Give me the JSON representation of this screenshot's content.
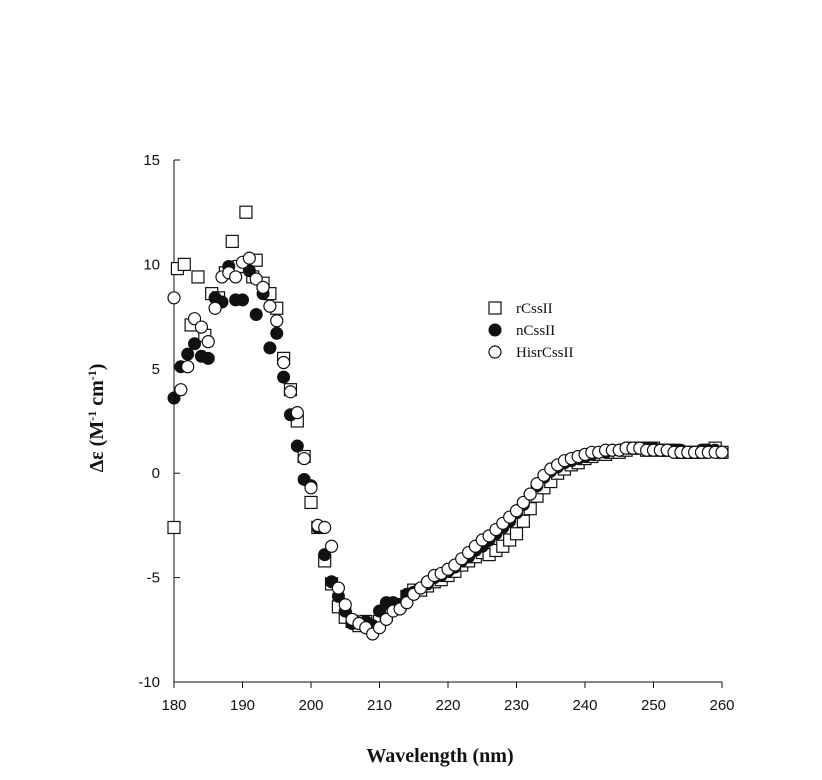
{
  "chart_data": {
    "type": "scatter",
    "xlabel": "Wavelength (nm)",
    "ylabel_parts": {
      "main": "Δε (M",
      "sup1": "-1",
      "mid": " cm",
      "sup2": "-1",
      "end": ")"
    },
    "xlim": [
      180,
      260
    ],
    "ylim": [
      -10,
      15
    ],
    "x_ticks": [
      180,
      190,
      200,
      210,
      220,
      230,
      240,
      250,
      260
    ],
    "y_ticks": [
      -10,
      -5,
      0,
      5,
      10,
      15
    ],
    "grid": false,
    "legend_position": "right-middle",
    "series": [
      {
        "name": "rCssII",
        "marker": "open-square",
        "points": [
          [
            180,
            -2.6
          ],
          [
            180.5,
            9.8
          ],
          [
            181.5,
            10.0
          ],
          [
            182.5,
            7.1
          ],
          [
            183.5,
            9.4
          ],
          [
            184.5,
            6.6
          ],
          [
            185.5,
            8.6
          ],
          [
            186.5,
            8.4
          ],
          [
            187.5,
            9.6
          ],
          [
            188.5,
            11.1
          ],
          [
            189.5,
            9.9
          ],
          [
            190.5,
            12.5
          ],
          [
            191.5,
            9.4
          ],
          [
            192,
            10.2
          ],
          [
            193,
            9.1
          ],
          [
            194,
            8.6
          ],
          [
            195,
            7.9
          ],
          [
            196,
            5.5
          ],
          [
            197,
            4.0
          ],
          [
            198,
            2.5
          ],
          [
            199,
            0.8
          ],
          [
            200,
            -1.4
          ],
          [
            201,
            -2.6
          ],
          [
            202,
            -4.2
          ],
          [
            203,
            -5.3
          ],
          [
            204,
            -6.4
          ],
          [
            205,
            -6.9
          ],
          [
            206,
            -7.1
          ],
          [
            207,
            -7.3
          ],
          [
            208,
            -7.1
          ],
          [
            209,
            -7.3
          ],
          [
            210,
            -7.1
          ],
          [
            211,
            -6.8
          ],
          [
            212,
            -6.5
          ],
          [
            213,
            -6.3
          ],
          [
            214,
            -5.9
          ],
          [
            215,
            -5.6
          ],
          [
            216,
            -5.6
          ],
          [
            217,
            -5.4
          ],
          [
            218,
            -5.2
          ],
          [
            219,
            -5.1
          ],
          [
            220,
            -4.9
          ],
          [
            221,
            -4.7
          ],
          [
            222,
            -4.4
          ],
          [
            223,
            -4.2
          ],
          [
            224,
            -4.0
          ],
          [
            225,
            -3.8
          ],
          [
            226,
            -3.9
          ],
          [
            227,
            -3.7
          ],
          [
            228,
            -3.5
          ],
          [
            229,
            -3.2
          ],
          [
            230,
            -2.9
          ],
          [
            231,
            -2.3
          ],
          [
            232,
            -1.7
          ],
          [
            233,
            -1.1
          ],
          [
            234,
            -0.7
          ],
          [
            235,
            -0.4
          ],
          [
            236,
            0.0
          ],
          [
            237,
            0.2
          ],
          [
            238,
            0.4
          ],
          [
            239,
            0.5
          ],
          [
            240,
            0.7
          ],
          [
            241,
            0.8
          ],
          [
            242,
            0.9
          ],
          [
            243,
            0.9
          ],
          [
            244,
            1.0
          ],
          [
            245,
            1.0
          ],
          [
            246,
            1.1
          ],
          [
            247,
            1.2
          ],
          [
            248,
            1.2
          ],
          [
            249,
            1.1
          ],
          [
            250,
            1.2
          ],
          [
            251,
            1.1
          ],
          [
            252,
            1.1
          ],
          [
            253,
            1.1
          ],
          [
            254,
            1.0
          ],
          [
            255,
            1.0
          ],
          [
            256,
            1.0
          ],
          [
            257,
            1.0
          ],
          [
            258,
            1.1
          ],
          [
            259,
            1.2
          ],
          [
            260,
            1.0
          ]
        ]
      },
      {
        "name": "nCssII",
        "marker": "filled-circle",
        "points": [
          [
            180,
            3.6
          ],
          [
            181,
            5.1
          ],
          [
            182,
            5.7
          ],
          [
            183,
            6.2
          ],
          [
            184,
            5.6
          ],
          [
            185,
            5.5
          ],
          [
            186,
            8.4
          ],
          [
            187,
            8.2
          ],
          [
            188,
            9.9
          ],
          [
            189,
            8.3
          ],
          [
            190,
            8.3
          ],
          [
            191,
            9.7
          ],
          [
            192,
            7.6
          ],
          [
            193,
            8.6
          ],
          [
            194,
            6.0
          ],
          [
            195,
            6.7
          ],
          [
            196,
            4.6
          ],
          [
            197,
            2.8
          ],
          [
            198,
            1.3
          ],
          [
            199,
            -0.3
          ],
          [
            200,
            -0.6
          ],
          [
            201,
            -2.6
          ],
          [
            202,
            -3.9
          ],
          [
            203,
            -5.2
          ],
          [
            204,
            -5.9
          ],
          [
            205,
            -6.6
          ],
          [
            206,
            -7.2
          ],
          [
            207,
            -7.2
          ],
          [
            208,
            -7.1
          ],
          [
            209,
            -7.3
          ],
          [
            210,
            -6.6
          ],
          [
            211,
            -6.2
          ],
          [
            212,
            -6.2
          ],
          [
            213,
            -6.3
          ],
          [
            214,
            -5.8
          ],
          [
            215,
            -5.7
          ],
          [
            216,
            -5.5
          ],
          [
            217,
            -5.3
          ],
          [
            218,
            -5.0
          ],
          [
            219,
            -4.9
          ],
          [
            220,
            -4.7
          ],
          [
            221,
            -4.5
          ],
          [
            222,
            -4.2
          ],
          [
            223,
            -4.0
          ],
          [
            224,
            -3.7
          ],
          [
            225,
            -3.5
          ],
          [
            226,
            -3.2
          ],
          [
            227,
            -2.9
          ],
          [
            228,
            -2.6
          ],
          [
            229,
            -2.3
          ],
          [
            230,
            -1.9
          ],
          [
            231,
            -1.5
          ],
          [
            232,
            -1.0
          ],
          [
            233,
            -0.6
          ],
          [
            234,
            -0.2
          ],
          [
            235,
            0.1
          ],
          [
            236,
            0.3
          ],
          [
            237,
            0.5
          ],
          [
            238,
            0.6
          ],
          [
            239,
            0.7
          ],
          [
            240,
            0.8
          ],
          [
            241,
            0.9
          ],
          [
            242,
            1.0
          ],
          [
            243,
            1.0
          ],
          [
            244,
            1.1
          ],
          [
            245,
            1.1
          ],
          [
            246,
            1.2
          ],
          [
            247,
            1.2
          ],
          [
            248,
            1.2
          ],
          [
            249,
            1.2
          ],
          [
            250,
            1.2
          ],
          [
            251,
            1.1
          ],
          [
            252,
            1.1
          ],
          [
            253,
            1.1
          ],
          [
            254,
            1.1
          ],
          [
            255,
            1.0
          ],
          [
            256,
            1.0
          ],
          [
            257,
            1.1
          ],
          [
            258,
            1.1
          ],
          [
            259,
            1.1
          ],
          [
            260,
            1.0
          ]
        ]
      },
      {
        "name": "HisrCssII",
        "marker": "open-circle",
        "points": [
          [
            180,
            8.4
          ],
          [
            181,
            4.0
          ],
          [
            182,
            5.1
          ],
          [
            183,
            7.4
          ],
          [
            184,
            7.0
          ],
          [
            185,
            6.3
          ],
          [
            186,
            7.9
          ],
          [
            187,
            9.4
          ],
          [
            188,
            9.6
          ],
          [
            189,
            9.4
          ],
          [
            190,
            10.1
          ],
          [
            191,
            10.3
          ],
          [
            192,
            9.3
          ],
          [
            193,
            8.9
          ],
          [
            194,
            8.0
          ],
          [
            195,
            7.3
          ],
          [
            196,
            5.3
          ],
          [
            197,
            3.9
          ],
          [
            198,
            2.9
          ],
          [
            199,
            0.7
          ],
          [
            200,
            -0.7
          ],
          [
            201,
            -2.5
          ],
          [
            202,
            -2.6
          ],
          [
            203,
            -3.5
          ],
          [
            204,
            -5.5
          ],
          [
            205,
            -6.3
          ],
          [
            206,
            -7.0
          ],
          [
            207,
            -7.2
          ],
          [
            208,
            -7.4
          ],
          [
            209,
            -7.7
          ],
          [
            210,
            -7.4
          ],
          [
            211,
            -7.0
          ],
          [
            212,
            -6.6
          ],
          [
            213,
            -6.5
          ],
          [
            214,
            -6.2
          ],
          [
            215,
            -5.8
          ],
          [
            216,
            -5.5
          ],
          [
            217,
            -5.2
          ],
          [
            218,
            -4.9
          ],
          [
            219,
            -4.8
          ],
          [
            220,
            -4.6
          ],
          [
            221,
            -4.4
          ],
          [
            222,
            -4.1
          ],
          [
            223,
            -3.8
          ],
          [
            224,
            -3.5
          ],
          [
            225,
            -3.2
          ],
          [
            226,
            -3.0
          ],
          [
            227,
            -2.7
          ],
          [
            228,
            -2.4
          ],
          [
            229,
            -2.1
          ],
          [
            230,
            -1.8
          ],
          [
            231,
            -1.4
          ],
          [
            232,
            -1.0
          ],
          [
            233,
            -0.5
          ],
          [
            234,
            -0.1
          ],
          [
            235,
            0.2
          ],
          [
            236,
            0.4
          ],
          [
            237,
            0.6
          ],
          [
            238,
            0.7
          ],
          [
            239,
            0.8
          ],
          [
            240,
            0.9
          ],
          [
            241,
            1.0
          ],
          [
            242,
            1.0
          ],
          [
            243,
            1.1
          ],
          [
            244,
            1.1
          ],
          [
            245,
            1.1
          ],
          [
            246,
            1.2
          ],
          [
            247,
            1.2
          ],
          [
            248,
            1.2
          ],
          [
            249,
            1.1
          ],
          [
            250,
            1.1
          ],
          [
            251,
            1.1
          ],
          [
            252,
            1.1
          ],
          [
            253,
            1.0
          ],
          [
            254,
            1.0
          ],
          [
            255,
            1.0
          ],
          [
            256,
            1.0
          ],
          [
            257,
            1.0
          ],
          [
            258,
            1.0
          ],
          [
            259,
            1.0
          ],
          [
            260,
            1.0
          ]
        ]
      }
    ]
  }
}
